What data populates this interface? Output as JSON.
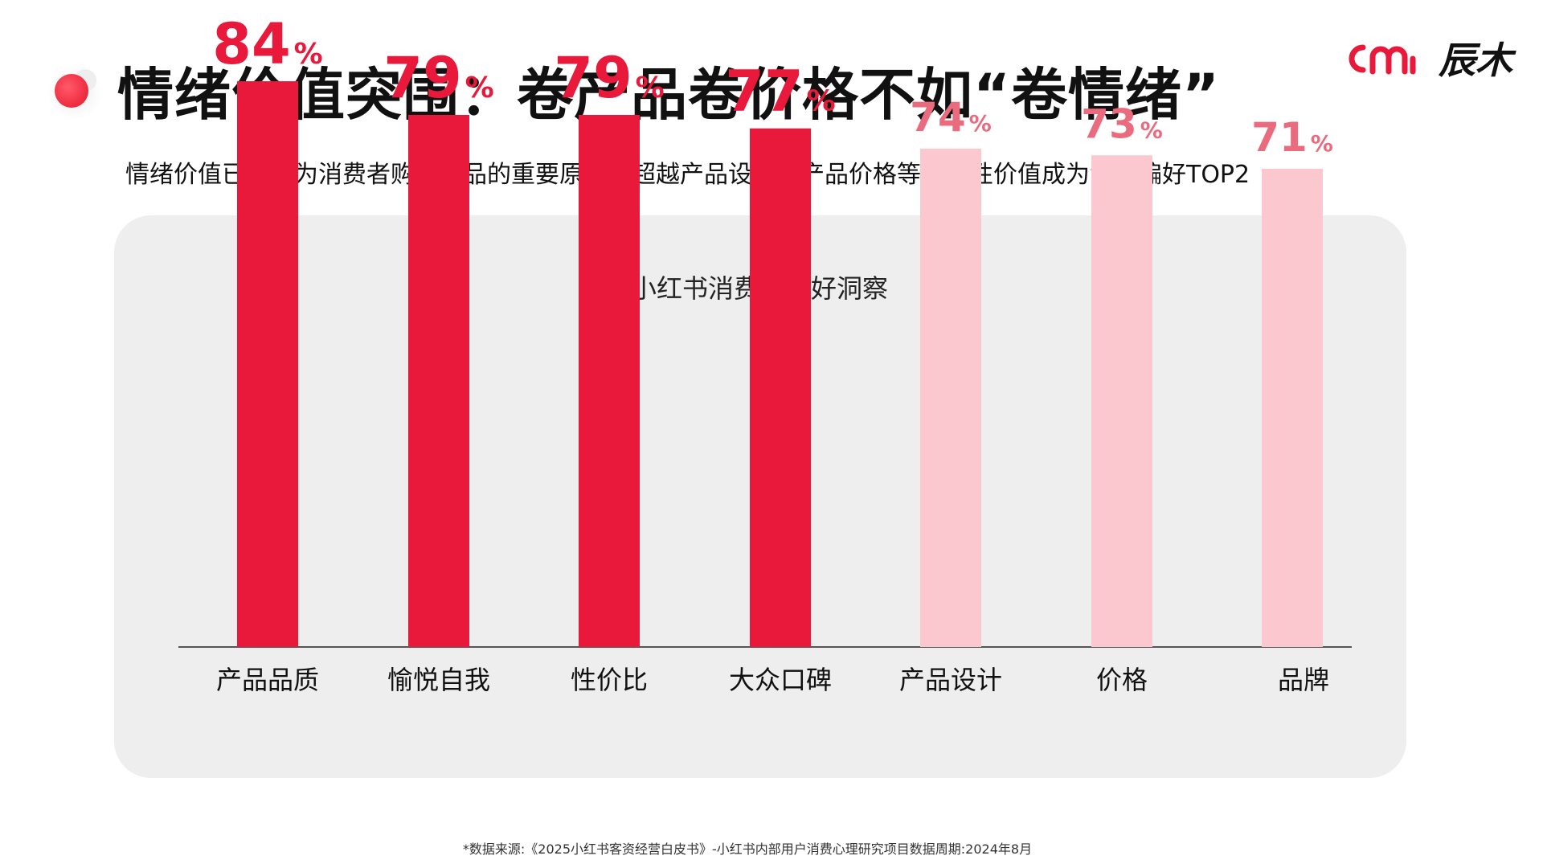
{
  "header": {
    "title": "情绪价值突围：卷产品卷价格不如“卷情绪”",
    "subtitle": "情绪价值已经成为消费者购买产品的重要原因，超越产品设计、产品价格等功能性价值成为消费偏好TOP2",
    "logo_text": "辰木"
  },
  "colors": {
    "accent": "#e8193a",
    "light": "#fcc8d0",
    "light_label": "#ea6a7e",
    "panel": "#efeeee"
  },
  "chart_data": {
    "type": "bar",
    "title": "小红书消费者偏好洞察",
    "categories": [
      "产品品质",
      "愉悦自我",
      "性价比",
      "大众口碑",
      "产品设计",
      "价格",
      "品牌"
    ],
    "values": [
      84,
      79,
      79,
      77,
      74,
      73,
      71
    ],
    "value_suffix": "%",
    "highlight": [
      true,
      true,
      true,
      true,
      false,
      false,
      false
    ],
    "xlabel": "",
    "ylabel": "",
    "grid": false,
    "legend": "none"
  },
  "footnote": "*数据来源:《2025小红书客资经营白皮书》-小红书内部用户消费心理研究项目数据周期:2024年8月"
}
